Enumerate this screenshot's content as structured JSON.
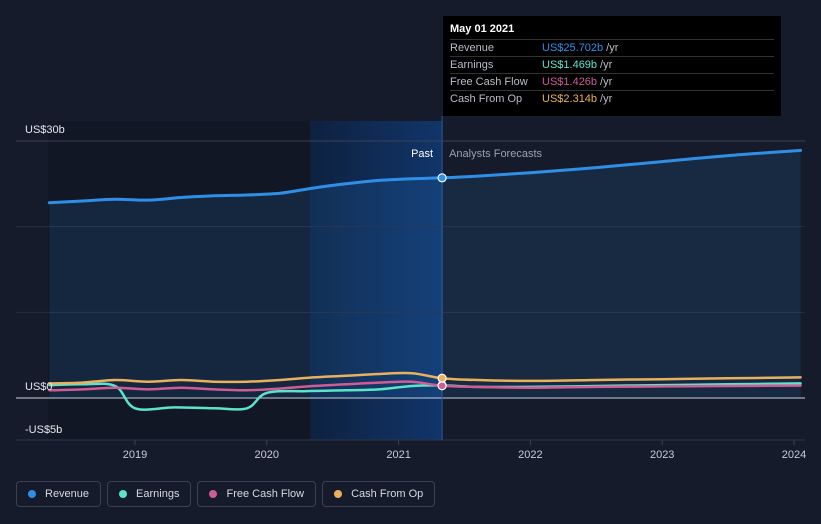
{
  "chart_data": {
    "type": "line",
    "y_axis": {
      "top_label": "US$30b",
      "zero_label": "US$0",
      "bottom_label": "-US$5b",
      "ylim": [
        -5,
        30
      ]
    },
    "x_ticks": [
      "2019",
      "2020",
      "2021",
      "2022",
      "2023",
      "2024"
    ],
    "divider": {
      "past_label": "Past",
      "forecast_label": "Analysts Forecasts",
      "date": 2021.33
    },
    "series": [
      {
        "name": "Revenue",
        "color": "#2f8fe6",
        "points": [
          [
            2018.35,
            22.8
          ],
          [
            2018.6,
            23.0
          ],
          [
            2018.85,
            23.2
          ],
          [
            2019.1,
            23.1
          ],
          [
            2019.35,
            23.4
          ],
          [
            2019.6,
            23.6
          ],
          [
            2019.85,
            23.7
          ],
          [
            2020.1,
            23.9
          ],
          [
            2020.35,
            24.5
          ],
          [
            2020.6,
            25.0
          ],
          [
            2020.85,
            25.4
          ],
          [
            2021.1,
            25.6
          ],
          [
            2021.33,
            25.7
          ],
          [
            2021.6,
            25.9
          ],
          [
            2022.0,
            26.3
          ],
          [
            2022.5,
            26.9
          ],
          [
            2023.0,
            27.6
          ],
          [
            2023.5,
            28.3
          ],
          [
            2024.05,
            28.9
          ]
        ]
      },
      {
        "name": "Earnings",
        "color": "#5de3c9",
        "points": [
          [
            2018.35,
            1.5
          ],
          [
            2018.6,
            1.6
          ],
          [
            2018.85,
            1.4
          ],
          [
            2019.0,
            -1.2
          ],
          [
            2019.3,
            -1.1
          ],
          [
            2019.6,
            -1.2
          ],
          [
            2019.85,
            -1.2
          ],
          [
            2020.0,
            0.6
          ],
          [
            2020.3,
            0.8
          ],
          [
            2020.6,
            0.9
          ],
          [
            2020.85,
            1.0
          ],
          [
            2021.1,
            1.4
          ],
          [
            2021.33,
            1.47
          ],
          [
            2021.6,
            1.3
          ],
          [
            2022.0,
            1.3
          ],
          [
            2022.5,
            1.4
          ],
          [
            2023.0,
            1.5
          ],
          [
            2023.5,
            1.6
          ],
          [
            2024.05,
            1.7
          ]
        ]
      },
      {
        "name": "Free Cash Flow",
        "color": "#d05c95",
        "points": [
          [
            2018.35,
            0.9
          ],
          [
            2018.6,
            1.0
          ],
          [
            2018.85,
            1.2
          ],
          [
            2019.1,
            1.0
          ],
          [
            2019.35,
            1.2
          ],
          [
            2019.6,
            1.0
          ],
          [
            2019.85,
            0.9
          ],
          [
            2020.1,
            1.1
          ],
          [
            2020.35,
            1.4
          ],
          [
            2020.6,
            1.6
          ],
          [
            2020.85,
            1.8
          ],
          [
            2021.1,
            1.9
          ],
          [
            2021.33,
            1.43
          ],
          [
            2021.6,
            1.3
          ],
          [
            2022.0,
            1.2
          ],
          [
            2022.5,
            1.3
          ],
          [
            2023.0,
            1.35
          ],
          [
            2023.5,
            1.4
          ],
          [
            2024.05,
            1.45
          ]
        ]
      },
      {
        "name": "Cash From Op",
        "color": "#e9b15e",
        "points": [
          [
            2018.35,
            1.7
          ],
          [
            2018.6,
            1.8
          ],
          [
            2018.85,
            2.1
          ],
          [
            2019.1,
            1.9
          ],
          [
            2019.35,
            2.1
          ],
          [
            2019.6,
            1.9
          ],
          [
            2019.85,
            1.9
          ],
          [
            2020.1,
            2.1
          ],
          [
            2020.35,
            2.4
          ],
          [
            2020.6,
            2.6
          ],
          [
            2020.85,
            2.8
          ],
          [
            2021.1,
            2.9
          ],
          [
            2021.33,
            2.31
          ],
          [
            2021.6,
            2.1
          ],
          [
            2022.0,
            2.0
          ],
          [
            2022.5,
            2.1
          ],
          [
            2023.0,
            2.2
          ],
          [
            2023.5,
            2.3
          ],
          [
            2024.05,
            2.4
          ]
        ]
      }
    ]
  },
  "tooltip": {
    "date": "May 01 2021",
    "unit": "/yr",
    "rows": [
      {
        "label": "Revenue",
        "value": "US$25.702b",
        "color": "#2f8fe6"
      },
      {
        "label": "Earnings",
        "value": "US$1.469b",
        "color": "#5de3c9"
      },
      {
        "label": "Free Cash Flow",
        "value": "US$1.426b",
        "color": "#d05c95"
      },
      {
        "label": "Cash From Op",
        "value": "US$2.314b",
        "color": "#e9b15e"
      }
    ]
  },
  "legend": [
    {
      "label": "Revenue",
      "color": "#2f8fe6"
    },
    {
      "label": "Earnings",
      "color": "#5de3c9"
    },
    {
      "label": "Free Cash Flow",
      "color": "#d05c95"
    },
    {
      "label": "Cash From Op",
      "color": "#e9b15e"
    }
  ]
}
